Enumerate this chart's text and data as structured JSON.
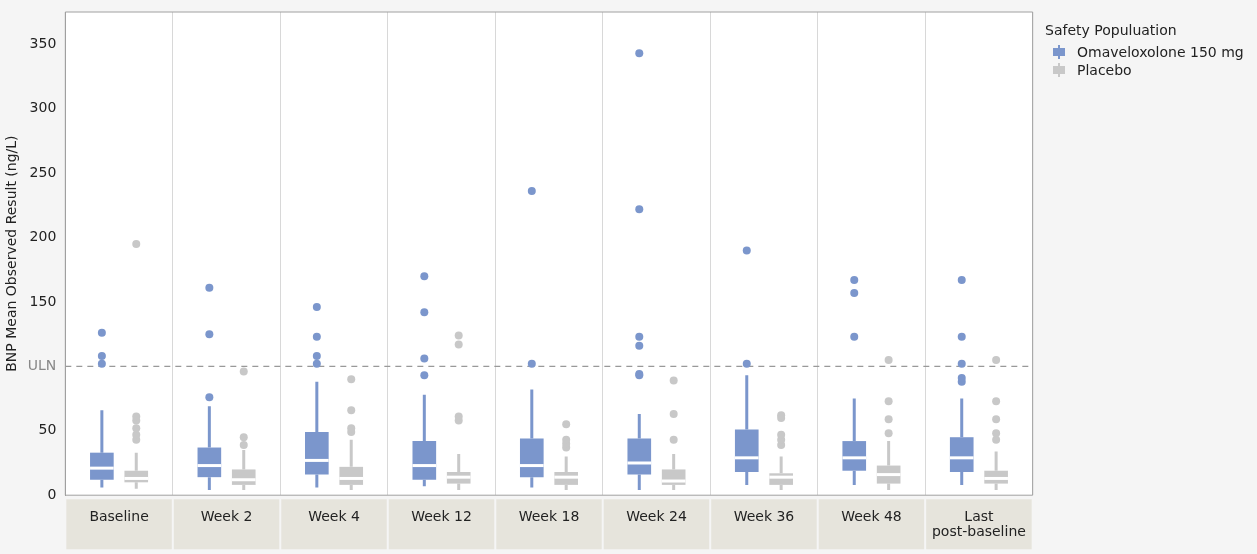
{
  "chart_data": {
    "type": "box",
    "ylabel": "BNP Mean Observed Result (ng/L)",
    "legend_title": "Safety Populuation",
    "legend": "right",
    "grid": "x",
    "categories": [
      "Baseline",
      "Week 2",
      "Week 4",
      "Week 12",
      "Week 18",
      "Week 24",
      "Week 36",
      "Week 48",
      "Last post-baseline"
    ],
    "ylim": [
      0,
      375
    ],
    "yticks": [
      0,
      50,
      {
        "value": 100,
        "label": "ULN"
      },
      150,
      200,
      250,
      300,
      350
    ],
    "ref_lines": [
      {
        "axis": "y",
        "value": 100,
        "label": null,
        "color": "#999999",
        "line_style": "dashed"
      }
    ],
    "series": [
      {
        "name": "Omaveloxolone 150 mg",
        "color": "#7b96cc",
        "boxes": [
          {
            "low": 6,
            "q1": 12,
            "median": 21,
            "q3": 33,
            "high": 66,
            "outliers": [
              102,
              108,
              126
            ]
          },
          {
            "low": 4,
            "q1": 14,
            "median": 23,
            "q3": 37,
            "high": 69,
            "outliers": [
              76,
              125,
              161
            ]
          },
          {
            "low": 6,
            "q1": 16,
            "median": 27,
            "q3": 49,
            "high": 88,
            "outliers": [
              102,
              108,
              123,
              146
            ]
          },
          {
            "low": 7,
            "q1": 12,
            "median": 23,
            "q3": 42,
            "high": 78,
            "outliers": [
              93,
              106,
              142,
              170
            ]
          },
          {
            "low": 6,
            "q1": 14,
            "median": 23,
            "q3": 44,
            "high": 82,
            "outliers": [
              102,
              236
            ]
          },
          {
            "low": 4,
            "q1": 16,
            "median": 25,
            "q3": 44,
            "high": 63,
            "outliers": [
              93,
              94,
              116,
              123,
              222,
              343
            ]
          },
          {
            "low": 8,
            "q1": 18,
            "median": 29,
            "q3": 51,
            "high": 93,
            "outliers": [
              102,
              190
            ]
          },
          {
            "low": 8,
            "q1": 19,
            "median": 29,
            "q3": 42,
            "high": 75,
            "outliers": [
              123,
              157,
              167
            ]
          },
          {
            "low": 8,
            "q1": 18,
            "median": 29,
            "q3": 45,
            "high": 75,
            "outliers": [
              88,
              91,
              102,
              123,
              167
            ]
          }
        ]
      },
      {
        "name": "Placebo",
        "color": "#c8c8c8",
        "boxes": [
          {
            "low": 5,
            "q1": 10,
            "median": 13,
            "q3": 19,
            "high": 33,
            "outliers": [
              43,
              47,
              52,
              58,
              61,
              195
            ]
          },
          {
            "low": 4,
            "q1": 8,
            "median": 12,
            "q3": 20,
            "high": 35,
            "outliers": [
              39,
              45,
              96
            ]
          },
          {
            "low": 4,
            "q1": 8,
            "median": 13,
            "q3": 22,
            "high": 43,
            "outliers": [
              49,
              52,
              66,
              90
            ]
          },
          {
            "low": 4,
            "q1": 9,
            "median": 14,
            "q3": 18,
            "high": 32,
            "outliers": [
              58,
              61,
              117,
              124
            ]
          },
          {
            "low": 4,
            "q1": 8,
            "median": 14,
            "q3": 18,
            "high": 30,
            "outliers": [
              37,
              40,
              43,
              55
            ]
          },
          {
            "low": 4,
            "q1": 8,
            "median": 11,
            "q3": 20,
            "high": 32,
            "outliers": [
              43,
              63,
              89
            ]
          },
          {
            "low": 4,
            "q1": 8,
            "median": 14,
            "q3": 17,
            "high": 30,
            "outliers": [
              39,
              43,
              47,
              60,
              62
            ]
          },
          {
            "low": 4,
            "q1": 9,
            "median": 16,
            "q3": 23,
            "high": 42,
            "outliers": [
              48,
              59,
              73,
              105
            ]
          },
          {
            "low": 4,
            "q1": 9,
            "median": 13,
            "q3": 19,
            "high": 34,
            "outliers": [
              43,
              48,
              59,
              73,
              105
            ]
          }
        ]
      }
    ]
  }
}
